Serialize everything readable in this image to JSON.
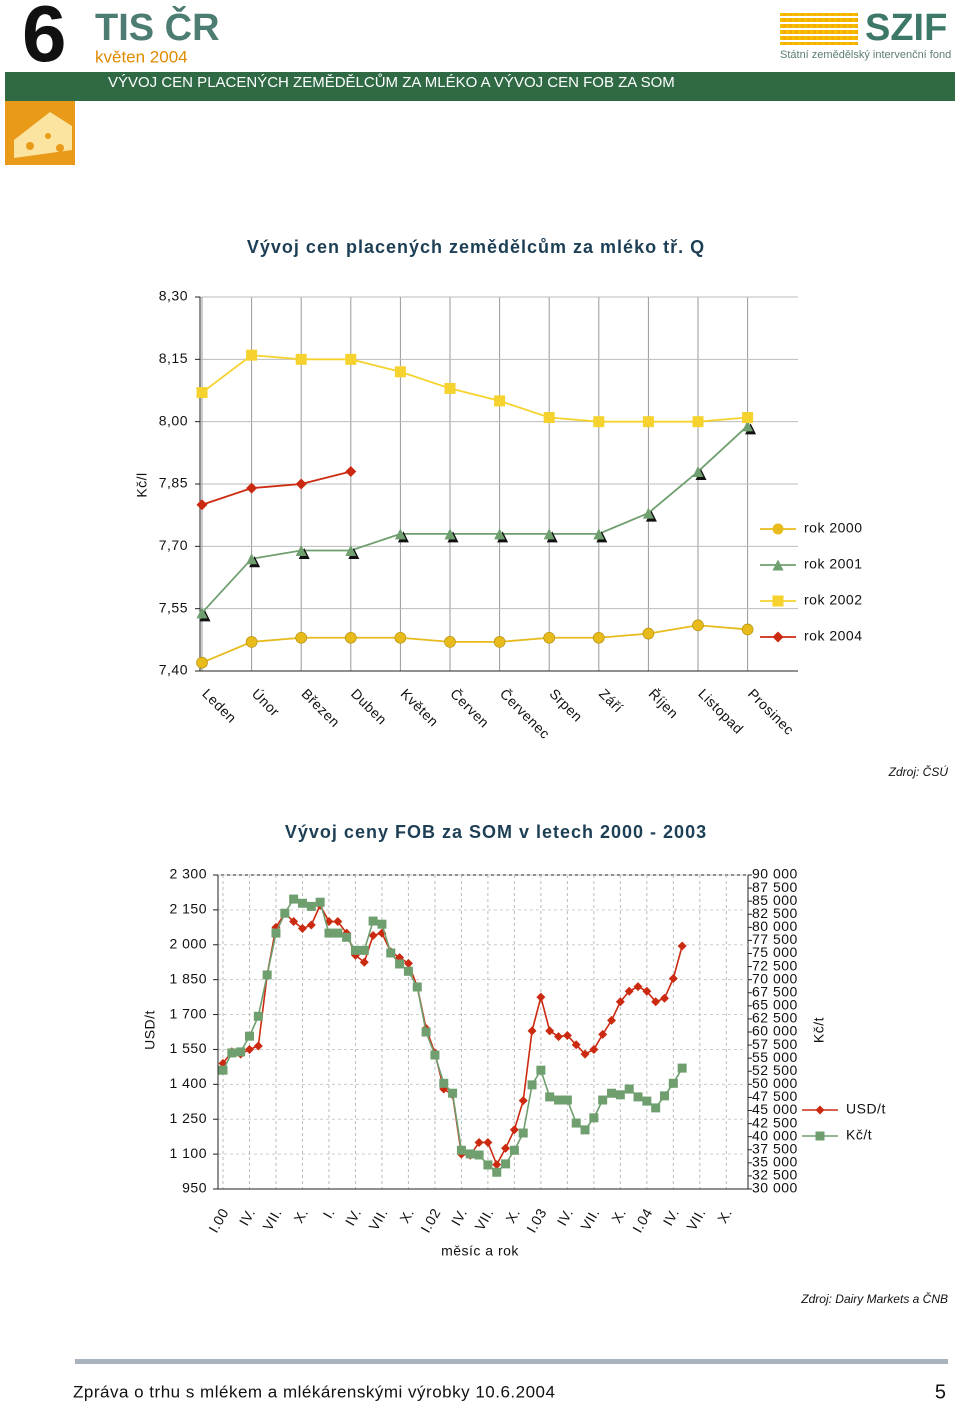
{
  "header": {
    "number": "6",
    "brand": "TIS ČR",
    "date": "květen 2004",
    "subtitle": "VÝVOJ CEN PLACENÝCH ZEMĚDĚLCŮM ZA MLÉKO A VÝVOJ CEN FOB ZA SOM",
    "logo": "SZIF",
    "logo_caption": "Státní zemědělský intervenční fond"
  },
  "chart_data": [
    {
      "type": "line",
      "title": "Vývoj cen placených zemědělcům za mléko tř. Q",
      "y_label": "Kč/l",
      "source": "Zdroj: ČSÚ",
      "categories": [
        "Leden",
        "Únor",
        "Březen",
        "Duben",
        "Květen",
        "Červen",
        "Červenec",
        "Srpen",
        "Září",
        "Říjen",
        "Listopad",
        "Prosinec"
      ],
      "ylim": [
        7.4,
        8.3
      ],
      "yticks": [
        {
          "value": 7.4,
          "label": "7,40"
        },
        {
          "value": 7.55,
          "label": "7,55"
        },
        {
          "value": 7.7,
          "label": "7,70"
        },
        {
          "value": 7.85,
          "label": "7,85"
        },
        {
          "value": 8.0,
          "label": "8,00"
        },
        {
          "value": 8.15,
          "label": "8,15"
        },
        {
          "value": 8.3,
          "label": "8,30"
        }
      ],
      "grid": true,
      "legend": "right",
      "series": [
        {
          "name": "rok 2000",
          "color": "#e8bb1c",
          "marker": "circle",
          "values": [
            7.42,
            7.47,
            7.48,
            7.48,
            7.48,
            7.47,
            7.47,
            7.48,
            7.48,
            7.49,
            7.51,
            7.5
          ]
        },
        {
          "name": "rok 2001",
          "color": "#6f9f6f",
          "marker": "triangle",
          "values": [
            7.54,
            7.67,
            7.69,
            7.69,
            7.73,
            7.73,
            7.73,
            7.73,
            7.73,
            7.78,
            7.88,
            7.99
          ]
        },
        {
          "name": "rok 2002",
          "color": "#f5d22e",
          "marker": "square",
          "values": [
            8.07,
            8.16,
            8.15,
            8.15,
            8.12,
            8.08,
            8.05,
            8.01,
            8.0,
            8.0,
            8.0,
            8.01
          ]
        },
        {
          "name": "rok 2004",
          "color": "#cc2a10",
          "marker": "diamond",
          "values": [
            7.8,
            7.84,
            7.85,
            7.88,
            null,
            null,
            null,
            null,
            null,
            null,
            null,
            null
          ]
        }
      ]
    },
    {
      "type": "line",
      "title": "Vývoj ceny FOB za SOM v letech 2000 - 2003",
      "y_label": "USD/t",
      "y2_label": "Kč/t",
      "x_label": "měsíc a rok",
      "source": "Zdroj: Dairy Markets a ČNB",
      "categories": [
        "I.00",
        null,
        null,
        "IV.",
        null,
        null,
        "VII.",
        null,
        null,
        "X.",
        null,
        null,
        "I.",
        null,
        null,
        "IV.",
        null,
        null,
        "VII.",
        null,
        null,
        "X.",
        null,
        null,
        "I.02",
        null,
        null,
        "IV.",
        null,
        null,
        "VII.",
        null,
        null,
        "X.",
        null,
        null,
        "I.03",
        null,
        null,
        "IV.",
        null,
        null,
        "VII.",
        null,
        null,
        "X.",
        null,
        null,
        "I.04",
        null,
        null,
        "IV.",
        null,
        null,
        "VII.",
        null,
        null,
        "X.",
        null,
        null
      ],
      "ylim": [
        950,
        2300
      ],
      "yticks": [
        950,
        {
          "value": 1100,
          "label": "1 100"
        },
        {
          "value": 1250,
          "label": "1 250"
        },
        {
          "value": 1400,
          "label": "1 400"
        },
        {
          "value": 1550,
          "label": "1 550"
        },
        {
          "value": 1700,
          "label": "1 700"
        },
        {
          "value": 1850,
          "label": "1 850"
        },
        {
          "value": 2000,
          "label": "2 000"
        },
        {
          "value": 2150,
          "label": "2 150"
        },
        {
          "value": 2300,
          "label": "2 300"
        }
      ],
      "y2lim": [
        30000,
        90000
      ],
      "y2ticks": [
        {
          "value": 30000,
          "label": "30 000"
        },
        {
          "value": 32500,
          "label": "32 500"
        },
        {
          "value": 35000,
          "label": "35 000"
        },
        {
          "value": 37500,
          "label": "37 500"
        },
        {
          "value": 40000,
          "label": "40 000"
        },
        {
          "value": 42500,
          "label": "42 500"
        },
        {
          "value": 45000,
          "label": "45 000"
        },
        {
          "value": 47500,
          "label": "47 500"
        },
        {
          "value": 50000,
          "label": "50 000"
        },
        {
          "value": 52500,
          "label": "52 500"
        },
        {
          "value": 55000,
          "label": "55 000"
        },
        {
          "value": 57500,
          "label": "57 500"
        },
        {
          "value": 60000,
          "label": "60 000"
        },
        {
          "value": 62500,
          "label": "62 500"
        },
        {
          "value": 65000,
          "label": "65 000"
        },
        {
          "value": 67500,
          "label": "67 500"
        },
        {
          "value": 70000,
          "label": "70 000"
        },
        {
          "value": 72500,
          "label": "72 500"
        },
        {
          "value": 75000,
          "label": "75 000"
        },
        {
          "value": 77500,
          "label": "77 500"
        },
        {
          "value": 80000,
          "label": "80 000"
        },
        {
          "value": 82500,
          "label": "82 500"
        },
        {
          "value": 85000,
          "label": "85 000"
        },
        {
          "value": 87500,
          "label": "87 500"
        },
        {
          "value": 90000,
          "label": "90 000"
        }
      ],
      "grid": true,
      "legend": "right",
      "series": [
        {
          "name": "USD/t",
          "color": "#cc2a10",
          "marker": "diamond",
          "values": [
            1490,
            1540,
            1530,
            1550,
            1565,
            1870,
            2075,
            2135,
            2100,
            2070,
            2085,
            2170,
            2100,
            2100,
            2050,
            1955,
            1925,
            2040,
            2050,
            1970,
            1945,
            1920,
            1820,
            1640,
            1535,
            1380,
            1355,
            1100,
            1095,
            1150,
            1150,
            1055,
            1125,
            1205,
            1330,
            1630,
            1775,
            1630,
            1605,
            1610,
            1570,
            1530,
            1550,
            1615,
            1675,
            1755,
            1800,
            1820,
            1800,
            1755,
            1770,
            1855,
            1995,
            null,
            null,
            null,
            null,
            null,
            null,
            null
          ]
        },
        {
          "name": "Kč/t",
          "color": "#6f9f6f",
          "marker": "square",
          "axis": "y2",
          "values": [
            52700,
            56000,
            56200,
            59200,
            63000,
            70900,
            78900,
            82700,
            85400,
            84600,
            84000,
            84800,
            78900,
            78900,
            78100,
            75600,
            75600,
            81200,
            80600,
            75100,
            73000,
            71600,
            68600,
            60000,
            55600,
            50200,
            48300,
            37400,
            36700,
            36500,
            34600,
            33200,
            34800,
            37400,
            40700,
            49900,
            52700,
            47600,
            47000,
            47000,
            42600,
            41300,
            43600,
            47000,
            48300,
            48000,
            49100,
            47600,
            46800,
            45500,
            47800,
            50200,
            53100,
            null,
            null,
            null,
            null,
            null,
            null,
            null
          ]
        }
      ]
    }
  ],
  "footer": {
    "text": "Zpráva o trhu s mlékem a mlékárenskými výrobky 10.6.2004",
    "page": "5"
  }
}
